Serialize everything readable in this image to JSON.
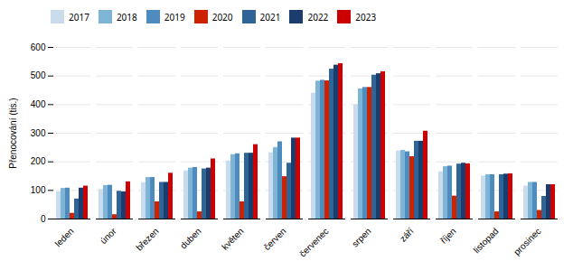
{
  "chart_data": {
    "type": "bar",
    "categories": [
      "leden",
      "únor",
      "březen",
      "duben",
      "květen",
      "červen",
      "červenec",
      "srpen",
      "září",
      "říjen",
      "listopad",
      "prosinec"
    ],
    "series": [
      {
        "name": "2017",
        "color": "#c8dced",
        "values": [
          95,
          103,
          127,
          168,
          203,
          232,
          440,
          400,
          238,
          165,
          150,
          115
        ]
      },
      {
        "name": "2018",
        "color": "#7eb5d6",
        "values": [
          107,
          117,
          145,
          178,
          225,
          250,
          482,
          455,
          240,
          183,
          155,
          128
        ]
      },
      {
        "name": "2019",
        "color": "#4e8bbf",
        "values": [
          108,
          118,
          145,
          180,
          228,
          270,
          485,
          460,
          235,
          185,
          155,
          128
        ]
      },
      {
        "name": "2020",
        "color": "#cc2200",
        "values": [
          20,
          15,
          60,
          25,
          60,
          148,
          483,
          460,
          218,
          80,
          25,
          30
        ]
      },
      {
        "name": "2021",
        "color": "#2e6496",
        "values": [
          70,
          97,
          128,
          175,
          230,
          195,
          524,
          503,
          272,
          192,
          155,
          79
        ]
      },
      {
        "name": "2022",
        "color": "#1b3d6e",
        "values": [
          108,
          95,
          128,
          178,
          230,
          283,
          538,
          508,
          272,
          195,
          157,
          120
        ]
      },
      {
        "name": "2023",
        "color": "#cc0000",
        "values": [
          115,
          130,
          160,
          210,
          260,
          283,
          543,
          515,
          307,
          193,
          158,
          120
        ]
      }
    ],
    "ylabel": "Přenocování (tis.)",
    "ylim": [
      0,
      600
    ],
    "yticks": [
      0,
      100,
      200,
      300,
      400,
      500,
      600
    ],
    "grid": true,
    "legend": "upper left"
  }
}
